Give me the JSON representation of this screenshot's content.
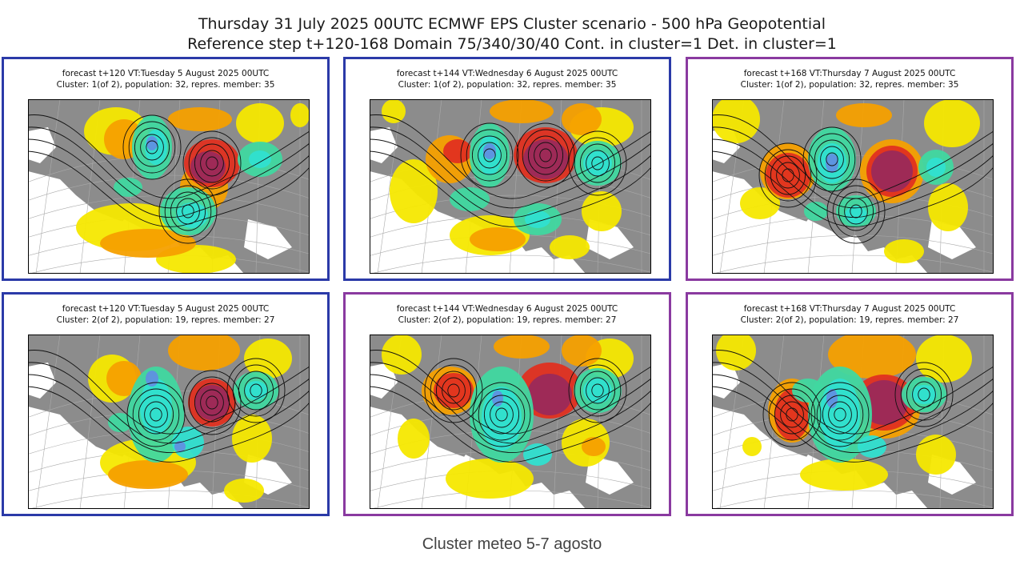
{
  "header": {
    "title_line1": "Thursday 31 July 2025 00UTC ECMWF EPS Cluster scenario - 500 hPa Geopotential",
    "title_line2": "Reference step t+120-168 Domain 75/340/30/40 Cont. in cluster=1 Det. in cluster=1"
  },
  "panels": [
    {
      "forecast": "forecast t+120 VT:Tuesday 5 August 2025 00UTC",
      "cluster": "Cluster: 1(of 2), population: 32, repres. member: 35",
      "border_color": "#2b3aa8"
    },
    {
      "forecast": "forecast t+144 VT:Wednesday 6 August 2025 00UTC",
      "cluster": "Cluster: 1(of 2), population: 32, repres. member: 35",
      "border_color": "#2b3aa8"
    },
    {
      "forecast": "forecast t+168 VT:Thursday 7 August 2025 00UTC",
      "cluster": "Cluster: 1(of 2), population: 32, repres. member: 35",
      "border_color": "#8a3aa0"
    },
    {
      "forecast": "forecast t+120 VT:Tuesday 5 August 2025 00UTC",
      "cluster": "Cluster: 2(of 2), population: 19, repres. member: 27",
      "border_color": "#2b3aa8"
    },
    {
      "forecast": "forecast t+144 VT:Wednesday 6 August 2025 00UTC",
      "cluster": "Cluster: 2(of 2), population: 19, repres. member: 27",
      "border_color": "#8a3aa0"
    },
    {
      "forecast": "forecast t+168 VT:Thursday 7 August 2025 00UTC",
      "cluster": "Cluster: 2(of 2), population: 19, repres. member: 27",
      "border_color": "#8a3aa0"
    }
  ],
  "colors": {
    "land": "#8c8c8c",
    "anomaly_positive_weak": "#f5e800",
    "anomaly_positive_mid": "#f5a000",
    "anomaly_positive_strong": "#e03020",
    "anomaly_positive_extreme": "#9a2a5a",
    "anomaly_negative_weak": "#40d8a0",
    "anomaly_negative_mid": "#30e0d0",
    "anomaly_negative_strong": "#6090e0"
  },
  "caption": "Cluster meteo 5-7 agosto"
}
